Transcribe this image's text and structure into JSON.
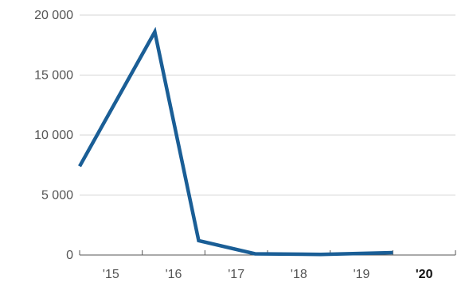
{
  "chart_data": {
    "type": "line",
    "title": "",
    "xlabel": "",
    "ylabel": "",
    "x_tick_labels": [
      "'15",
      "'16",
      "'17",
      "'18",
      "'19",
      "'20"
    ],
    "highlighted_tick": "'20",
    "y_ticks": [
      0,
      5000,
      10000,
      15000,
      20000
    ],
    "y_tick_labels": [
      "0",
      "5 000",
      "10 000",
      "15 000",
      "20 000"
    ],
    "ylim": [
      0,
      20000
    ],
    "xlim": [
      2014.5,
      2020.5
    ],
    "grid": "horizontal",
    "series": [
      {
        "color": "#1a5e96",
        "x": [
          2014.5,
          2015.7,
          2016.4,
          2017.3,
          2018.35,
          2019.5
        ],
        "values": [
          7400,
          18600,
          1200,
          100,
          50,
          200
        ]
      }
    ]
  }
}
